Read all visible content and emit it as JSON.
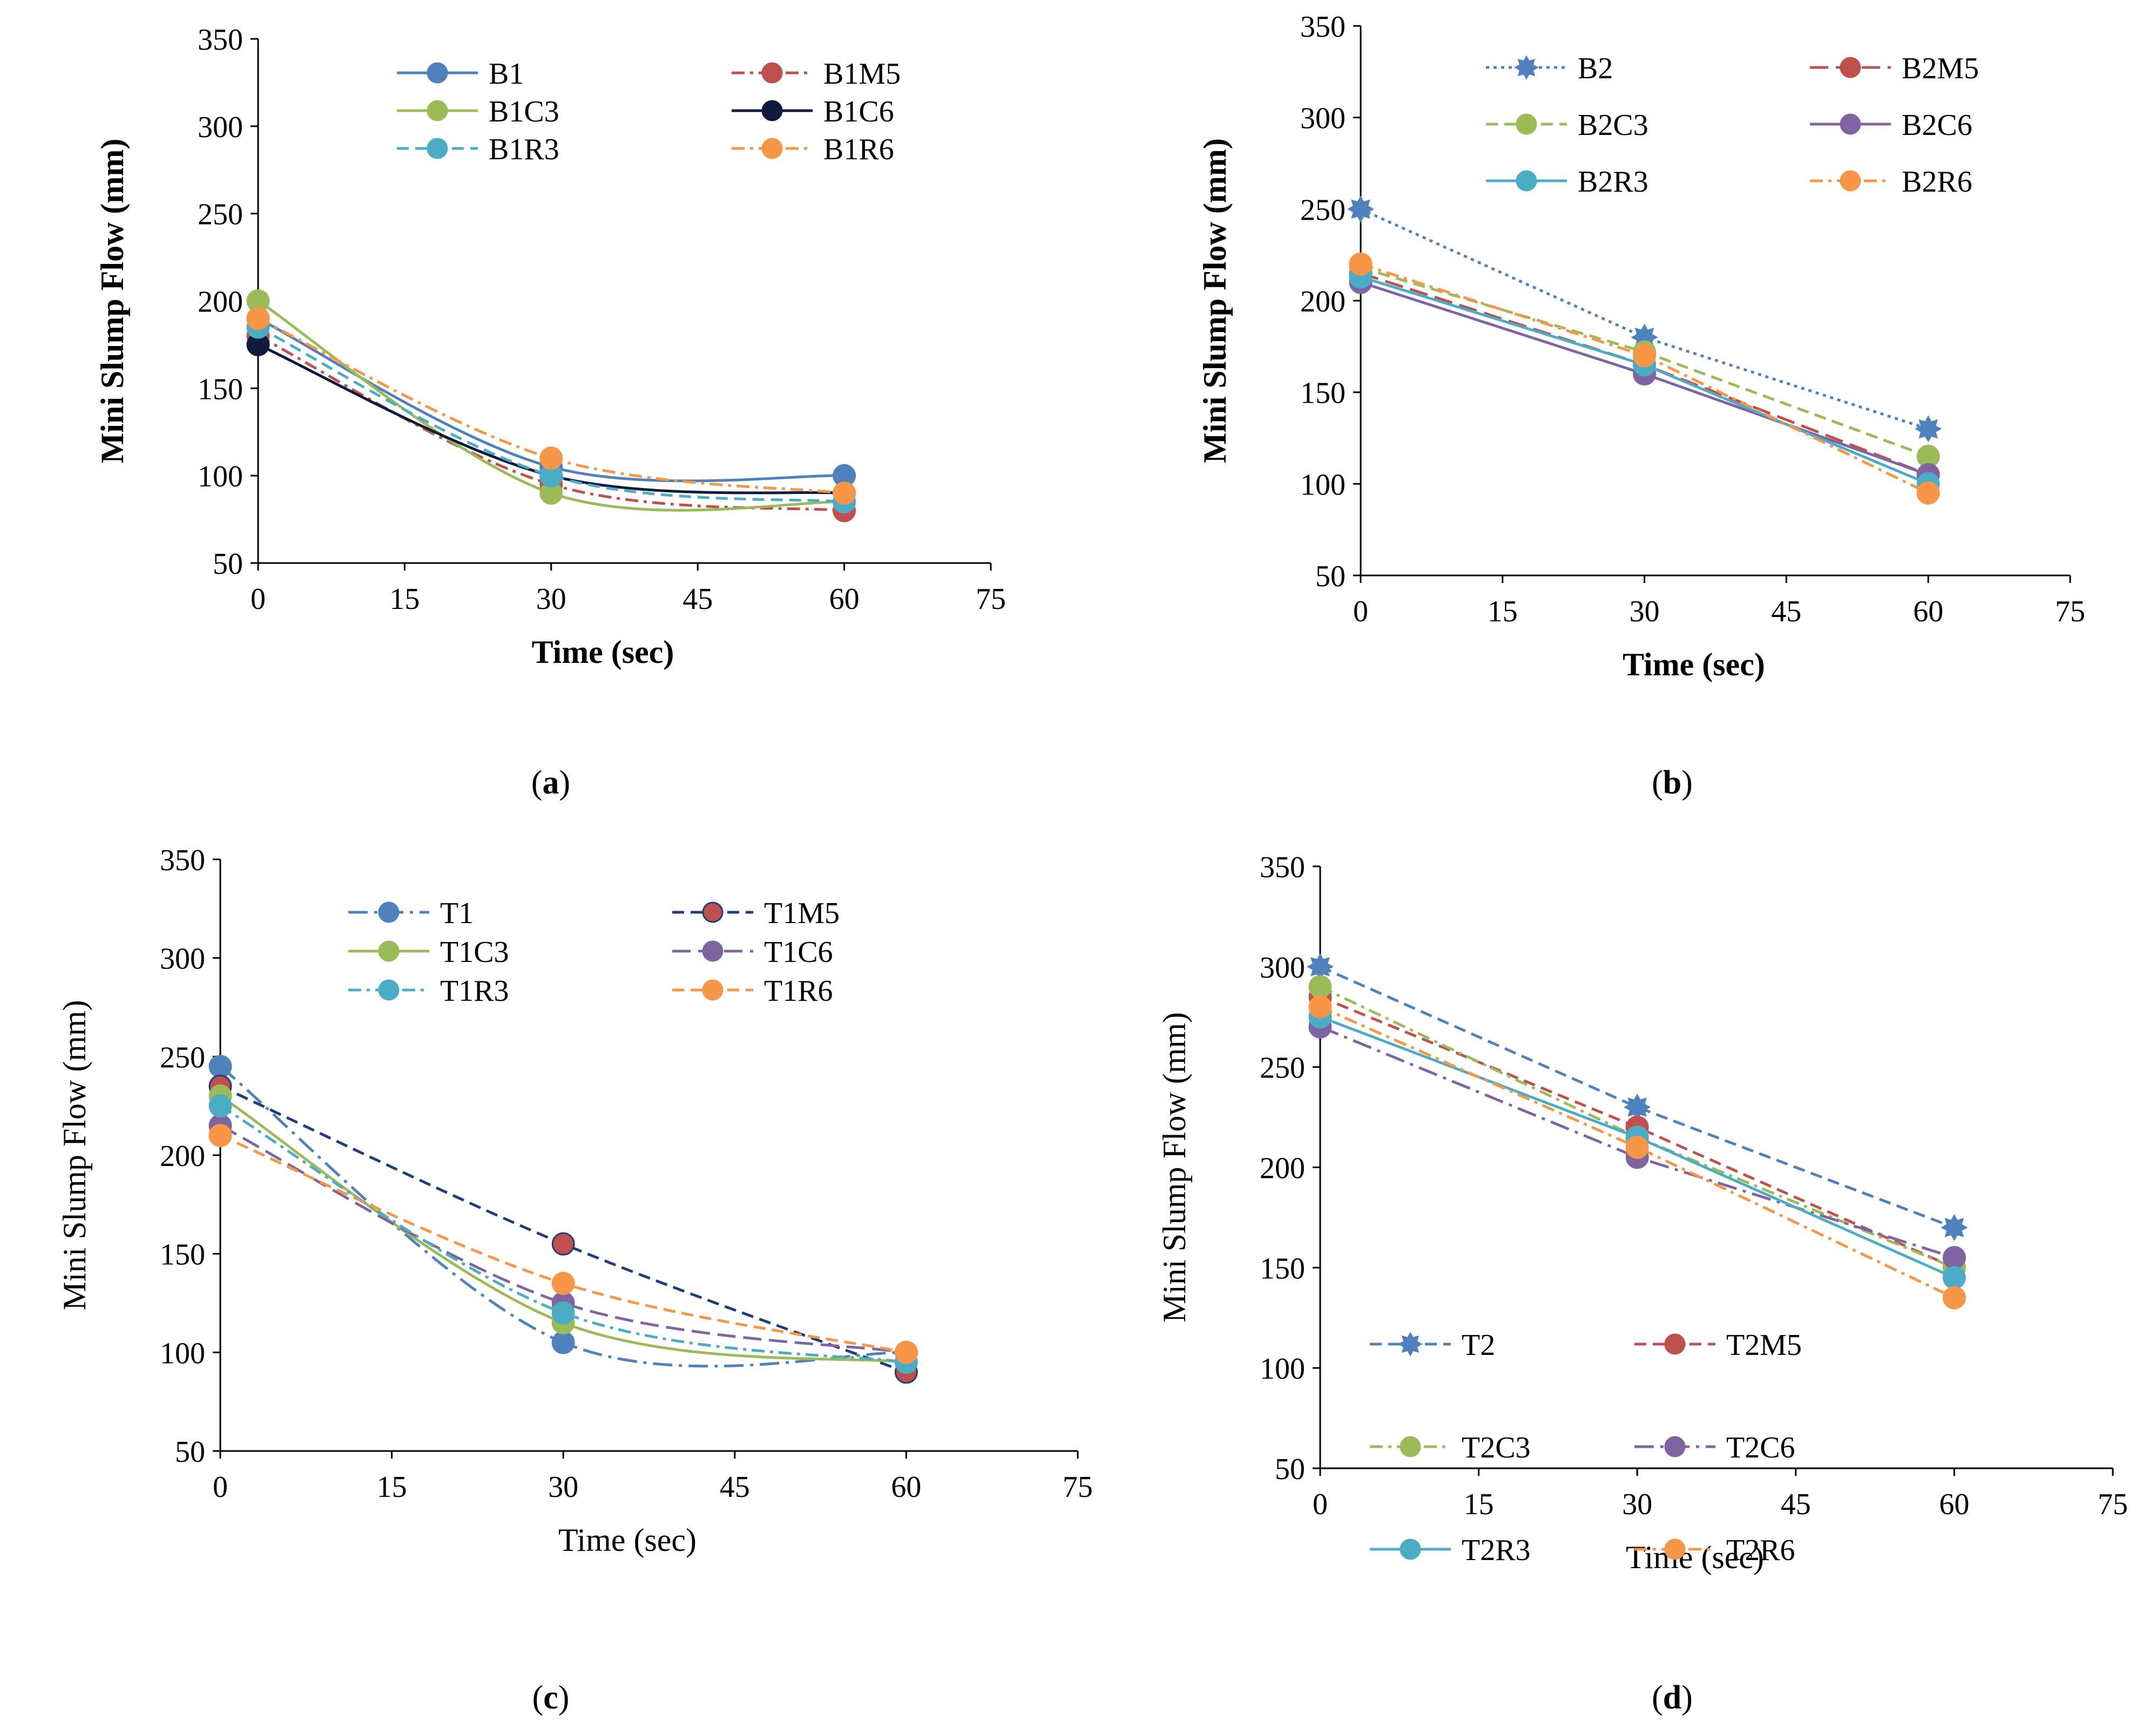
{
  "colors": {
    "blue": "#4F81BD",
    "red": "#C0504D",
    "green": "#9BBB59",
    "navy": "#1F2D54",
    "cyan": "#4BACC6",
    "orange": "#F79646",
    "purple": "#8064A2",
    "darkblue": "#1F3D7A"
  },
  "chart_data": [
    {
      "id": "a",
      "caption": "a",
      "type": "line",
      "xlabel": "Time (sec)",
      "ylabel": "Mini Slump Flow (mm)",
      "bold_labels": true,
      "xlim": [
        0,
        75
      ],
      "ylim": [
        50,
        350
      ],
      "xticks": [
        "0",
        "15",
        "30",
        "45",
        "60",
        "75"
      ],
      "yticks": [
        "50",
        "100",
        "150",
        "200",
        "250",
        "300",
        "350"
      ],
      "smooth": true,
      "legend_position": "top",
      "x": [
        0,
        30,
        60
      ],
      "series": [
        {
          "name": "B1",
          "values": [
            190,
            105,
            100
          ],
          "color": "#4F81BD",
          "dash": "solid",
          "marker": "circle"
        },
        {
          "name": "B1M5",
          "values": [
            180,
            95,
            80
          ],
          "color": "#C0504D",
          "dash": "dashdot",
          "marker": "circle"
        },
        {
          "name": "B1C3",
          "values": [
            200,
            90,
            85
          ],
          "color": "#9BBB59",
          "dash": "solid",
          "marker": "circle"
        },
        {
          "name": "B1C6",
          "values": [
            175,
            100,
            90
          ],
          "color": "#0F1B3D",
          "dash": "solid",
          "marker": "circle"
        },
        {
          "name": "B1R3",
          "values": [
            185,
            100,
            85
          ],
          "color": "#4BACC6",
          "dash": "dash",
          "marker": "circle"
        },
        {
          "name": "B1R6",
          "values": [
            190,
            110,
            90
          ],
          "color": "#F79646",
          "dash": "dashdot",
          "marker": "circle"
        }
      ]
    },
    {
      "id": "b",
      "caption": "b",
      "type": "line",
      "xlabel": "Time (sec)",
      "ylabel": "Mini Slump Flow (mm)",
      "bold_labels": true,
      "xlim": [
        0,
        75
      ],
      "ylim": [
        50,
        350
      ],
      "xticks": [
        "0",
        "15",
        "30",
        "45",
        "60",
        "75"
      ],
      "yticks": [
        "50",
        "100",
        "150",
        "200",
        "250",
        "300",
        "350"
      ],
      "smooth": false,
      "legend_position": "top",
      "x": [
        0,
        30,
        60
      ],
      "series": [
        {
          "name": "B2",
          "values": [
            250,
            180,
            130
          ],
          "color": "#4F81BD",
          "dash": "dot",
          "marker": "star"
        },
        {
          "name": "B2M5",
          "values": [
            215,
            165,
            105
          ],
          "color": "#C0504D",
          "dash": "longdash",
          "marker": "circle"
        },
        {
          "name": "B2C3",
          "values": [
            218,
            172,
            115
          ],
          "color": "#9BBB59",
          "dash": "dash",
          "marker": "circle"
        },
        {
          "name": "B2C6",
          "values": [
            210,
            160,
            105
          ],
          "color": "#8064A2",
          "dash": "solid",
          "marker": "circle"
        },
        {
          "name": "B2R3",
          "values": [
            213,
            165,
            100
          ],
          "color": "#4BACC6",
          "dash": "solid",
          "marker": "circle"
        },
        {
          "name": "B2R6",
          "values": [
            220,
            170,
            95
          ],
          "color": "#F79646",
          "dash": "dashdot",
          "marker": "circle"
        }
      ]
    },
    {
      "id": "c",
      "caption": "c",
      "type": "line",
      "xlabel": "Time (sec)",
      "ylabel": "Mini Slump Flow (mm)",
      "bold_labels": false,
      "xlim": [
        0,
        75
      ],
      "ylim": [
        50,
        350
      ],
      "xticks": [
        "0",
        "15",
        "30",
        "45",
        "60",
        "75"
      ],
      "yticks": [
        "50",
        "100",
        "150",
        "200",
        "250",
        "300",
        "350"
      ],
      "smooth": true,
      "legend_position": "top",
      "x": [
        0,
        30,
        60
      ],
      "series": [
        {
          "name": "T1",
          "values": [
            245,
            105,
            100
          ],
          "color": "#4F81BD",
          "dash": "longdashdot",
          "marker": "circle"
        },
        {
          "name": "T1M5",
          "values": [
            235,
            155,
            90
          ],
          "color": "#1F3D7A",
          "dash": "dash",
          "marker": "circle",
          "fill": "#C0504D"
        },
        {
          "name": "T1C3",
          "values": [
            230,
            115,
            95
          ],
          "color": "#9BBB59",
          "dash": "solid",
          "marker": "circle"
        },
        {
          "name": "T1C6",
          "values": [
            215,
            125,
            100
          ],
          "color": "#8064A2",
          "dash": "longdash",
          "marker": "circle"
        },
        {
          "name": "T1R3",
          "values": [
            225,
            120,
            95
          ],
          "color": "#4BACC6",
          "dash": "dashdot",
          "marker": "circle"
        },
        {
          "name": "T1R6",
          "values": [
            210,
            135,
            100
          ],
          "color": "#F79646",
          "dash": "dash",
          "marker": "circle"
        }
      ]
    },
    {
      "id": "d",
      "caption": "d",
      "type": "line",
      "xlabel": "Time (sec)",
      "ylabel": "Mini Slump Flow (mm)",
      "bold_labels": false,
      "xlim": [
        0,
        75
      ],
      "ylim": [
        50,
        350
      ],
      "xticks": [
        "0",
        "15",
        "30",
        "45",
        "60",
        "75"
      ],
      "yticks": [
        "50",
        "100",
        "150",
        "200",
        "250",
        "300",
        "350"
      ],
      "smooth": false,
      "legend_position": "bottom-inside",
      "x": [
        0,
        30,
        60
      ],
      "series": [
        {
          "name": "T2",
          "values": [
            300,
            230,
            170
          ],
          "color": "#4F81BD",
          "dash": "dash",
          "marker": "star"
        },
        {
          "name": "T2M5",
          "values": [
            285,
            220,
            150
          ],
          "color": "#C0504D",
          "dash": "dash",
          "marker": "circle"
        },
        {
          "name": "T2C3",
          "values": [
            290,
            215,
            150
          ],
          "color": "#9BBB59",
          "dash": "dashdot",
          "marker": "circle"
        },
        {
          "name": "T2C6",
          "values": [
            270,
            205,
            155
          ],
          "color": "#8064A2",
          "dash": "longdashdot",
          "marker": "circle"
        },
        {
          "name": "T2R3",
          "values": [
            275,
            215,
            145
          ],
          "color": "#4BACC6",
          "dash": "solid",
          "marker": "circle"
        },
        {
          "name": "T2R6",
          "values": [
            280,
            210,
            135
          ],
          "color": "#F79646",
          "dash": "dashdot",
          "marker": "circle"
        }
      ]
    }
  ]
}
